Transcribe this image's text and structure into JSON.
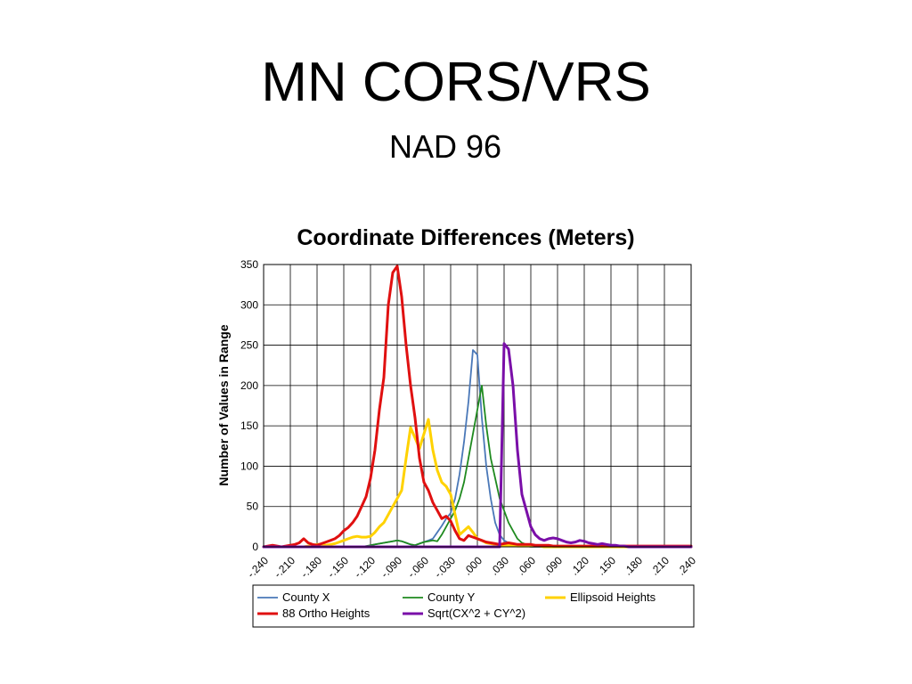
{
  "slide": {
    "title": "MN CORS/VRS",
    "subtitle": "NAD 96"
  },
  "chart_data": {
    "type": "line",
    "title": "Coordinate Differences (Meters)",
    "xlabel": "",
    "ylabel": "Number of Values in Range",
    "x_tick_labels": [
      "-.240",
      "-.210",
      "-.180",
      "-.150",
      "-.120",
      "-.090",
      "-.060",
      "-.030",
      ".000",
      ".030",
      ".060",
      ".090",
      ".120",
      ".150",
      ".180",
      ".210",
      ".240"
    ],
    "y_tick_labels": [
      "0",
      "50",
      "100",
      "150",
      "200",
      "250",
      "300",
      "350"
    ],
    "xlim": [
      -0.24,
      0.24
    ],
    "ylim": [
      0,
      350
    ],
    "grid": true,
    "legend_position": "bottom",
    "x": [
      -0.24,
      -0.235,
      -0.23,
      -0.225,
      -0.22,
      -0.215,
      -0.21,
      -0.205,
      -0.2,
      -0.195,
      -0.19,
      -0.185,
      -0.18,
      -0.175,
      -0.17,
      -0.165,
      -0.16,
      -0.155,
      -0.15,
      -0.145,
      -0.14,
      -0.135,
      -0.13,
      -0.125,
      -0.12,
      -0.115,
      -0.11,
      -0.105,
      -0.1,
      -0.095,
      -0.09,
      -0.085,
      -0.08,
      -0.075,
      -0.07,
      -0.065,
      -0.06,
      -0.055,
      -0.05,
      -0.045,
      -0.04,
      -0.035,
      -0.03,
      -0.025,
      -0.02,
      -0.015,
      -0.01,
      -0.005,
      0.0,
      0.005,
      0.01,
      0.015,
      0.02,
      0.025,
      0.03,
      0.035,
      0.04,
      0.045,
      0.05,
      0.055,
      0.06,
      0.065,
      0.07,
      0.075,
      0.08,
      0.085,
      0.09,
      0.095,
      0.1,
      0.105,
      0.11,
      0.115,
      0.12,
      0.125,
      0.13,
      0.135,
      0.14,
      0.145,
      0.15,
      0.155,
      0.16,
      0.165,
      0.17,
      0.175,
      0.18,
      0.185,
      0.19,
      0.195,
      0.2,
      0.205,
      0.21,
      0.215,
      0.22,
      0.225,
      0.23,
      0.235,
      0.24
    ],
    "series": [
      {
        "name": "County X",
        "color": "#4a78b8",
        "values": [
          0,
          0,
          0,
          0,
          0,
          0,
          0,
          0,
          0,
          0,
          0,
          0,
          0,
          0,
          0,
          0,
          0,
          0,
          0,
          0,
          0,
          0,
          0,
          0,
          2,
          3,
          4,
          5,
          6,
          7,
          8,
          7,
          5,
          3,
          2,
          4,
          6,
          8,
          10,
          18,
          26,
          35,
          42,
          60,
          90,
          130,
          180,
          244,
          238,
          160,
          100,
          60,
          30,
          15,
          8,
          5,
          3,
          2,
          1,
          1,
          0,
          0,
          0,
          0,
          0,
          0,
          0,
          0,
          0,
          0,
          0,
          0,
          0,
          0,
          0,
          0,
          0,
          0,
          0,
          0,
          0,
          0,
          0,
          0,
          0,
          0,
          0,
          0,
          0,
          0,
          0,
          0,
          0,
          0,
          0,
          0,
          0
        ]
      },
      {
        "name": "County Y",
        "color": "#1f8a1f",
        "values": [
          0,
          0,
          0,
          0,
          0,
          0,
          0,
          0,
          0,
          0,
          0,
          0,
          0,
          0,
          0,
          0,
          0,
          0,
          0,
          0,
          0,
          0,
          0,
          1,
          2,
          3,
          4,
          5,
          6,
          7,
          8,
          7,
          5,
          3,
          2,
          4,
          6,
          7,
          8,
          7,
          15,
          25,
          35,
          45,
          60,
          80,
          110,
          140,
          170,
          200,
          150,
          110,
          85,
          60,
          45,
          30,
          20,
          10,
          5,
          3,
          2,
          1,
          1,
          0,
          0,
          0,
          0,
          0,
          0,
          0,
          0,
          0,
          0,
          0,
          0,
          0,
          0,
          0,
          0,
          0,
          0,
          0,
          0,
          0,
          0,
          0,
          0,
          0,
          0,
          0,
          0,
          0,
          0,
          0,
          0,
          0,
          0
        ]
      },
      {
        "name": "Ellipsoid Heights",
        "color": "#ffd200",
        "values": [
          0,
          0,
          0,
          0,
          0,
          0,
          0,
          0,
          0,
          0,
          1,
          2,
          3,
          3,
          2,
          3,
          4,
          6,
          8,
          10,
          12,
          13,
          12,
          12,
          13,
          18,
          25,
          30,
          40,
          50,
          60,
          70,
          110,
          148,
          135,
          122,
          140,
          158,
          120,
          95,
          80,
          75,
          65,
          40,
          15,
          20,
          25,
          18,
          10,
          8,
          5,
          4,
          3,
          2,
          2,
          2,
          2,
          1,
          1,
          1,
          1,
          1,
          1,
          0,
          0,
          0,
          0,
          0,
          0,
          0,
          0,
          0,
          0,
          0,
          0,
          0,
          0,
          0,
          0,
          0,
          0,
          0,
          0,
          0,
          0,
          0,
          0,
          0,
          0,
          0,
          0,
          0,
          0,
          0,
          0,
          0,
          0
        ]
      },
      {
        "name": "88 Ortho Heights",
        "color": "#e01010",
        "values": [
          0,
          1,
          2,
          1,
          0,
          1,
          2,
          3,
          5,
          10,
          5,
          3,
          2,
          4,
          6,
          8,
          10,
          14,
          20,
          24,
          30,
          38,
          50,
          62,
          85,
          120,
          170,
          210,
          300,
          340,
          348,
          310,
          250,
          200,
          160,
          110,
          80,
          70,
          55,
          45,
          35,
          38,
          32,
          20,
          10,
          8,
          14,
          12,
          10,
          8,
          6,
          5,
          4,
          3,
          4,
          5,
          4,
          3,
          3,
          3,
          3,
          2,
          2,
          2,
          2,
          1,
          1,
          1,
          1,
          1,
          1,
          1,
          1,
          1,
          1,
          1,
          1,
          1,
          1,
          1,
          1,
          1,
          1,
          1,
          1,
          1,
          1,
          1,
          1,
          1,
          1,
          1,
          1,
          1,
          1,
          1,
          1
        ]
      },
      {
        "name": "Sqrt(CX^2 + CY^2)",
        "color": "#7a0fa8",
        "values": [
          0,
          0,
          0,
          0,
          0,
          0,
          0,
          0,
          0,
          0,
          0,
          0,
          0,
          0,
          0,
          0,
          0,
          0,
          0,
          0,
          0,
          0,
          0,
          0,
          0,
          0,
          0,
          0,
          0,
          0,
          0,
          0,
          0,
          0,
          0,
          0,
          0,
          0,
          0,
          0,
          0,
          0,
          0,
          0,
          0,
          0,
          0,
          0,
          0,
          0,
          0,
          0,
          0,
          0,
          252,
          245,
          200,
          120,
          65,
          45,
          25,
          15,
          10,
          8,
          10,
          11,
          10,
          8,
          6,
          5,
          6,
          8,
          7,
          5,
          4,
          3,
          4,
          3,
          2,
          2,
          1,
          1,
          0,
          0,
          0,
          0,
          0,
          0,
          0,
          0,
          0,
          0,
          0,
          0,
          0,
          0,
          0
        ]
      }
    ]
  }
}
